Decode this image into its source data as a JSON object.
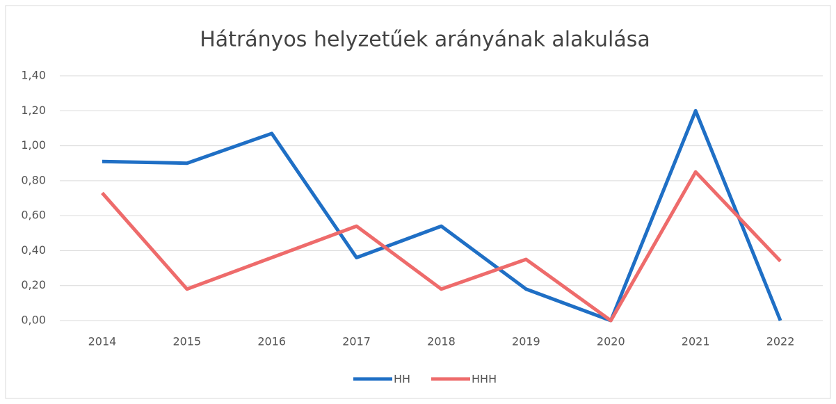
{
  "chart_data": {
    "type": "line",
    "title": "Hátrányos helyzetűek arányának alakulása",
    "categories": [
      "2014",
      "2015",
      "2016",
      "2017",
      "2018",
      "2019",
      "2020",
      "2021",
      "2022"
    ],
    "series": [
      {
        "name": "HH",
        "color": "#1f6fc5",
        "values": [
          0.91,
          0.9,
          1.07,
          0.36,
          0.54,
          0.18,
          0,
          1.2,
          0
        ]
      },
      {
        "name": "HHH",
        "color": "#ee6b6b",
        "values": [
          0.73,
          0.18,
          0.36,
          0.54,
          0.18,
          0.35,
          0,
          0.85,
          0.34
        ]
      }
    ],
    "ylim": [
      0,
      1.4
    ],
    "yticks": [
      {
        "value": 0,
        "label": "0,00"
      },
      {
        "value": 0.2,
        "label": "0,20"
      },
      {
        "value": 0.4,
        "label": "0,40"
      },
      {
        "value": 0.6,
        "label": "0,60"
      },
      {
        "value": 0.8,
        "label": "0,80"
      },
      {
        "value": 1.0,
        "label": "1,00"
      },
      {
        "value": 1.2,
        "label": "1,20"
      },
      {
        "value": 1.4,
        "label": "1,40"
      }
    ],
    "grid": true,
    "legend": "bottom"
  }
}
